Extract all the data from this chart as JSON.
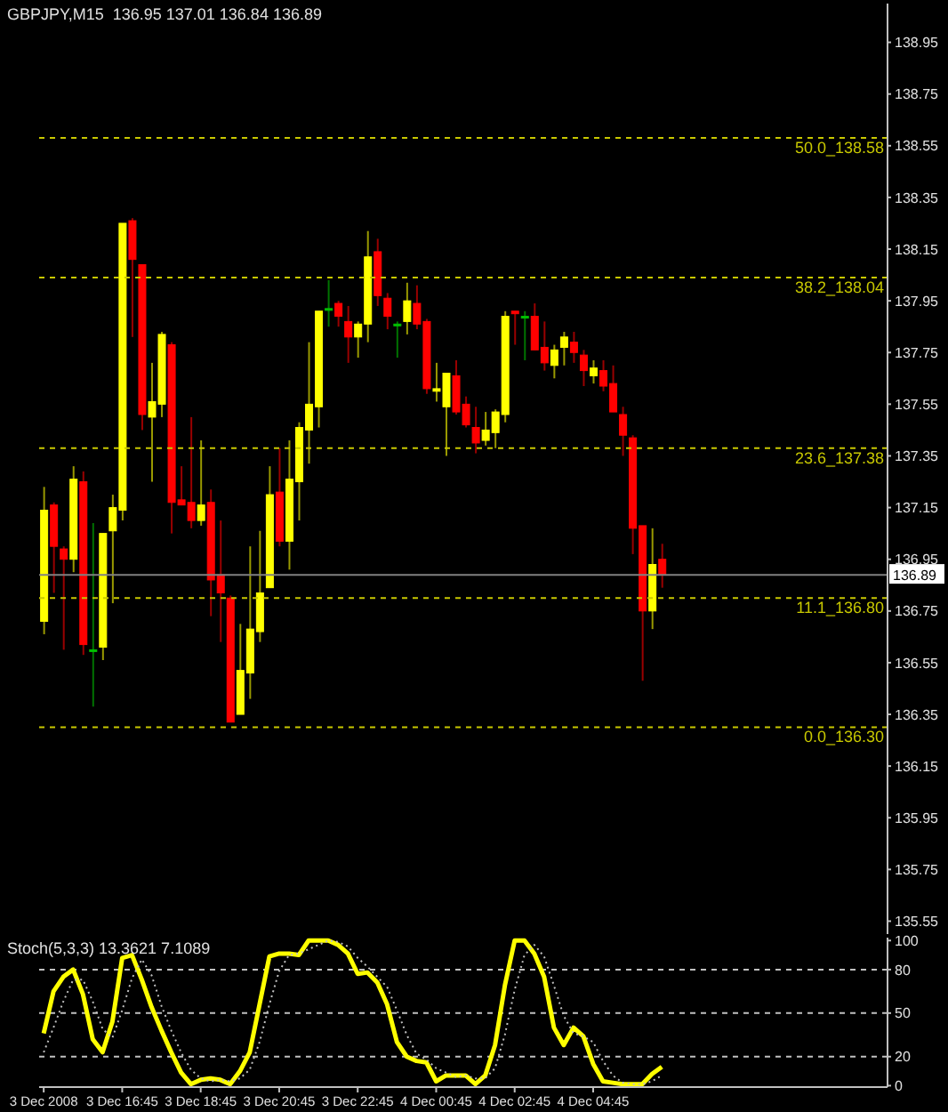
{
  "chart_data": [
    {
      "type": "candlestick",
      "title": "GBPJPY,M15  136.95 137.01 136.84 136.89",
      "x": [
        "2008-12-03T14:45",
        "2008-12-03T15:00",
        "2008-12-03T15:15",
        "2008-12-03T15:30",
        "2008-12-03T15:45",
        "2008-12-03T16:00",
        "2008-12-03T16:15",
        "2008-12-03T16:30",
        "2008-12-03T16:45",
        "2008-12-03T17:00",
        "2008-12-03T17:15",
        "2008-12-03T17:30",
        "2008-12-03T17:45",
        "2008-12-03T18:00",
        "2008-12-03T18:15",
        "2008-12-03T18:30",
        "2008-12-03T18:45",
        "2008-12-03T19:00",
        "2008-12-03T19:15",
        "2008-12-03T19:30",
        "2008-12-03T19:45",
        "2008-12-03T20:00",
        "2008-12-03T20:15",
        "2008-12-03T20:30",
        "2008-12-03T20:45",
        "2008-12-03T21:00",
        "2008-12-03T21:15",
        "2008-12-03T21:30",
        "2008-12-03T21:45",
        "2008-12-03T22:00",
        "2008-12-03T22:15",
        "2008-12-03T22:30",
        "2008-12-03T22:45",
        "2008-12-03T23:00",
        "2008-12-03T23:15",
        "2008-12-03T23:30",
        "2008-12-03T23:45",
        "2008-12-04T00:00",
        "2008-12-04T00:15",
        "2008-12-04T00:30",
        "2008-12-04T00:45",
        "2008-12-04T01:00",
        "2008-12-04T01:15",
        "2008-12-04T01:30",
        "2008-12-04T01:45",
        "2008-12-04T02:00",
        "2008-12-04T02:15",
        "2008-12-04T02:30",
        "2008-12-04T02:45",
        "2008-12-04T03:00",
        "2008-12-04T03:15",
        "2008-12-04T03:30",
        "2008-12-04T03:45",
        "2008-12-04T04:00",
        "2008-12-04T04:15",
        "2008-12-04T04:30",
        "2008-12-04T04:45",
        "2008-12-04T05:00",
        "2008-12-04T05:15",
        "2008-12-04T05:30",
        "2008-12-04T05:45",
        "2008-12-04T06:00",
        "2008-12-04T06:15",
        "2008-12-04T06:30"
      ],
      "ohlc": [
        [
          136.71,
          137.23,
          136.66,
          137.14
        ],
        [
          137.16,
          137.17,
          136.82,
          137.0
        ],
        [
          136.99,
          137.0,
          136.6,
          136.95
        ],
        [
          136.95,
          137.31,
          136.9,
          137.26
        ],
        [
          137.25,
          137.29,
          136.58,
          136.62
        ],
        [
          136.6,
          137.09,
          136.38,
          136.6
        ],
        [
          136.61,
          137.05,
          136.56,
          137.05
        ],
        [
          137.06,
          137.2,
          136.78,
          137.15
        ],
        [
          137.14,
          138.25,
          137.1,
          138.25
        ],
        [
          138.26,
          138.27,
          137.81,
          138.11
        ],
        [
          138.09,
          138.09,
          137.45,
          137.51
        ],
        [
          137.5,
          137.71,
          137.25,
          137.56
        ],
        [
          137.55,
          137.83,
          137.5,
          137.82
        ],
        [
          137.78,
          137.79,
          137.05,
          137.17
        ],
        [
          137.18,
          137.31,
          137.16,
          137.16
        ],
        [
          137.17,
          137.5,
          137.07,
          137.1
        ],
        [
          137.1,
          137.41,
          137.08,
          137.16
        ],
        [
          137.17,
          137.22,
          136.73,
          136.87
        ],
        [
          136.89,
          137.1,
          136.63,
          136.82
        ],
        [
          136.8,
          136.81,
          136.32,
          136.32
        ],
        [
          136.35,
          136.7,
          136.35,
          136.52
        ],
        [
          136.51,
          137.0,
          136.41,
          136.68
        ],
        [
          136.67,
          137.06,
          136.63,
          136.82
        ],
        [
          136.84,
          137.31,
          136.84,
          137.2
        ],
        [
          137.21,
          137.38,
          137.0,
          137.02
        ],
        [
          137.02,
          137.41,
          136.91,
          137.26
        ],
        [
          137.25,
          137.48,
          137.1,
          137.46
        ],
        [
          137.45,
          137.79,
          137.32,
          137.55
        ],
        [
          137.54,
          137.91,
          137.46,
          137.91
        ],
        [
          137.92,
          138.03,
          137.85,
          137.92
        ],
        [
          137.94,
          137.95,
          137.85,
          137.89
        ],
        [
          137.87,
          137.93,
          137.71,
          137.81
        ],
        [
          137.81,
          137.87,
          137.73,
          137.86
        ],
        [
          137.86,
          138.22,
          137.79,
          138.12
        ],
        [
          138.14,
          138.19,
          137.93,
          137.97
        ],
        [
          137.96,
          137.98,
          137.84,
          137.89
        ],
        [
          137.86,
          137.87,
          137.73,
          137.86
        ],
        [
          137.87,
          138.02,
          137.82,
          137.95
        ],
        [
          137.94,
          138.01,
          137.84,
          137.86
        ],
        [
          137.87,
          137.88,
          137.59,
          137.61
        ],
        [
          137.6,
          137.71,
          137.56,
          137.61
        ],
        [
          137.54,
          137.67,
          137.35,
          137.67
        ],
        [
          137.66,
          137.72,
          137.51,
          137.52
        ],
        [
          137.55,
          137.58,
          137.46,
          137.47
        ],
        [
          137.46,
          137.54,
          137.36,
          137.4
        ],
        [
          137.41,
          137.52,
          137.39,
          137.45
        ],
        [
          137.44,
          137.53,
          137.38,
          137.52
        ],
        [
          137.51,
          137.91,
          137.48,
          137.89
        ],
        [
          137.91,
          137.91,
          137.78,
          137.9
        ],
        [
          137.89,
          137.91,
          137.72,
          137.89
        ],
        [
          137.89,
          137.94,
          137.76,
          137.76
        ],
        [
          137.77,
          137.87,
          137.68,
          137.71
        ],
        [
          137.7,
          137.78,
          137.65,
          137.76
        ],
        [
          137.77,
          137.83,
          137.7,
          137.81
        ],
        [
          137.79,
          137.83,
          137.71,
          137.75
        ],
        [
          137.74,
          137.76,
          137.62,
          137.68
        ],
        [
          137.66,
          137.72,
          137.63,
          137.69
        ],
        [
          137.68,
          137.72,
          137.6,
          137.62
        ],
        [
          137.63,
          137.7,
          137.52,
          137.52
        ],
        [
          137.51,
          137.54,
          137.35,
          137.43
        ],
        [
          137.42,
          137.43,
          136.97,
          137.07
        ],
        [
          137.08,
          137.08,
          136.48,
          136.75
        ],
        [
          136.75,
          137.07,
          136.68,
          136.93
        ],
        [
          136.95,
          137.01,
          136.84,
          136.89
        ]
      ],
      "colors": [
        "#ffff00",
        "#ff0000",
        "#ff0000",
        "#ffff00",
        "#ff0000",
        "#00c000",
        "#ffff00",
        "#ffff00",
        "#ffff00",
        "#ff0000",
        "#ff0000",
        "#ffff00",
        "#ffff00",
        "#ff0000",
        "#ff0000",
        "#ff0000",
        "#ffff00",
        "#ff0000",
        "#ff0000",
        "#ff0000",
        "#ffff00",
        "#ffff00",
        "#ffff00",
        "#ffff00",
        "#ff0000",
        "#ffff00",
        "#ffff00",
        "#ffff00",
        "#ffff00",
        "#00c000",
        "#ff0000",
        "#ff0000",
        "#ffff00",
        "#ffff00",
        "#ff0000",
        "#ff0000",
        "#00c000",
        "#ffff00",
        "#ff0000",
        "#ff0000",
        "#ffff00",
        "#ffff00",
        "#ff0000",
        "#ff0000",
        "#ff0000",
        "#ffff00",
        "#ffff00",
        "#ffff00",
        "#ff0000",
        "#00c000",
        "#ff0000",
        "#ff0000",
        "#ffff00",
        "#ffff00",
        "#ff0000",
        "#ff0000",
        "#ffff00",
        "#ff0000",
        "#ff0000",
        "#ff0000",
        "#ff0000",
        "#ff0000",
        "#ffff00",
        "#ff0000"
      ],
      "xlim": [
        "2008-12-03T14:38",
        "2008-12-04T12:15"
      ],
      "ylim": [
        135.5,
        139.1
      ],
      "yticks": [
        138.95,
        138.75,
        138.55,
        138.35,
        138.15,
        137.95,
        137.75,
        137.55,
        137.35,
        137.15,
        136.95,
        136.75,
        136.55,
        136.35,
        136.15,
        135.95,
        135.75,
        135.55
      ],
      "ref_lines": [
        {
          "axis": "y",
          "value": 138.58,
          "label": "50.0_138.58",
          "color": "#c8c800",
          "line_style": "dashed"
        },
        {
          "axis": "y",
          "value": 138.04,
          "label": "38.2_138.04",
          "color": "#c8c800",
          "line_style": "dashed"
        },
        {
          "axis": "y",
          "value": 137.38,
          "label": "23.6_137.38",
          "color": "#c8c800",
          "line_style": "dashed"
        },
        {
          "axis": "y",
          "value": 136.8,
          "label": "11.1_136.80",
          "color": "#c8c800",
          "line_style": "dashed"
        },
        {
          "axis": "y",
          "value": 136.3,
          "label": "0.0_136.30",
          "color": "#c8c800",
          "line_style": "dashed"
        },
        {
          "axis": "y",
          "value": 136.89,
          "label": "136.89",
          "color": "#808080",
          "line_style": "solid"
        }
      ],
      "tick_labels": "y"
    },
    {
      "type": "line",
      "title": "Stoch(5,3,3) 13.3621 7.1089",
      "x": [
        "2008-12-03T14:45",
        "2008-12-03T15:00",
        "2008-12-03T15:15",
        "2008-12-03T15:30",
        "2008-12-03T15:45",
        "2008-12-03T16:00",
        "2008-12-03T16:15",
        "2008-12-03T16:30",
        "2008-12-03T16:45",
        "2008-12-03T17:00",
        "2008-12-03T17:15",
        "2008-12-03T17:30",
        "2008-12-03T17:45",
        "2008-12-03T18:00",
        "2008-12-03T18:15",
        "2008-12-03T18:30",
        "2008-12-03T18:45",
        "2008-12-03T19:00",
        "2008-12-03T19:15",
        "2008-12-03T19:30",
        "2008-12-03T19:45",
        "2008-12-03T20:00",
        "2008-12-03T20:15",
        "2008-12-03T20:30",
        "2008-12-03T20:45",
        "2008-12-03T21:00",
        "2008-12-03T21:15",
        "2008-12-03T21:30",
        "2008-12-03T21:45",
        "2008-12-03T22:00",
        "2008-12-03T22:15",
        "2008-12-03T22:30",
        "2008-12-03T22:45",
        "2008-12-03T23:00",
        "2008-12-03T23:15",
        "2008-12-03T23:30",
        "2008-12-03T23:45",
        "2008-12-04T00:00",
        "2008-12-04T00:15",
        "2008-12-04T00:30",
        "2008-12-04T00:45",
        "2008-12-04T01:00",
        "2008-12-04T01:15",
        "2008-12-04T01:30",
        "2008-12-04T01:45",
        "2008-12-04T02:00",
        "2008-12-04T02:15",
        "2008-12-04T02:30",
        "2008-12-04T02:45",
        "2008-12-04T03:00",
        "2008-12-04T03:15",
        "2008-12-04T03:30",
        "2008-12-04T03:45",
        "2008-12-04T04:00",
        "2008-12-04T04:15",
        "2008-12-04T04:30",
        "2008-12-04T04:45",
        "2008-12-04T05:00",
        "2008-12-04T05:15",
        "2008-12-04T05:30",
        "2008-12-04T05:45",
        "2008-12-04T06:00",
        "2008-12-04T06:15",
        "2008-12-04T06:30"
      ],
      "series": [
        {
          "color": "#ffff00",
          "line_style": "solid",
          "values": [
            36,
            65,
            75,
            80,
            63,
            32,
            23,
            44,
            88,
            90,
            73,
            54,
            38,
            23,
            9,
            1,
            4,
            5,
            4,
            1,
            10,
            23,
            56,
            89,
            91,
            91,
            90,
            100,
            100,
            100,
            97,
            91,
            77,
            78,
            71,
            56,
            30,
            20,
            17,
            16,
            3,
            7,
            7,
            7,
            1,
            7,
            28,
            69,
            100,
            100,
            91,
            75,
            40,
            28,
            40,
            34,
            15,
            3,
            2,
            1,
            1,
            1,
            8,
            13
          ]
        },
        {
          "color": "#c0c0c0",
          "line_style": "dotted",
          "values": [
            23,
            40,
            58,
            73,
            73,
            58,
            39,
            33,
            52,
            74,
            87,
            76,
            55,
            38,
            23,
            11,
            5,
            3,
            4,
            3,
            5,
            11,
            30,
            56,
            79,
            90,
            91,
            94,
            97,
            100,
            99,
            96,
            88,
            82,
            75,
            68,
            52,
            35,
            22,
            18,
            12,
            9,
            6,
            7,
            5,
            5,
            12,
            35,
            66,
            90,
            97,
            89,
            69,
            48,
            36,
            34,
            30,
            17,
            7,
            2,
            1,
            1,
            3,
            7
          ]
        }
      ],
      "xlim": [
        "2008-12-03T14:38",
        "2008-12-04T12:15"
      ],
      "xticks": [
        {
          "value": "2008-12-03T14:45",
          "label": "3 Dec 2008"
        },
        {
          "value": "2008-12-03T16:45",
          "label": "3 Dec 16:45"
        },
        {
          "value": "2008-12-03T18:45",
          "label": "3 Dec 18:45"
        },
        {
          "value": "2008-12-03T20:45",
          "label": "3 Dec 20:45"
        },
        {
          "value": "2008-12-03T22:45",
          "label": "3 Dec 22:45"
        },
        {
          "value": "2008-12-04T00:45",
          "label": "4 Dec 00:45"
        },
        {
          "value": "2008-12-04T02:45",
          "label": "4 Dec 02:45"
        },
        {
          "value": "2008-12-04T04:45",
          "label": "4 Dec 04:45"
        }
      ],
      "ylim": [
        -1,
        102
      ],
      "yticks": [
        100,
        80,
        50,
        20,
        0
      ],
      "ref_lines": [
        {
          "axis": "y",
          "value": 80,
          "color": "#c0c0c0",
          "line_style": "dashed"
        },
        {
          "axis": "y",
          "value": 50,
          "color": "#c0c0c0",
          "line_style": "dashed"
        },
        {
          "axis": "y",
          "value": 20,
          "color": "#c0c0c0",
          "line_style": "dashed"
        }
      ],
      "marker": "none"
    }
  ]
}
